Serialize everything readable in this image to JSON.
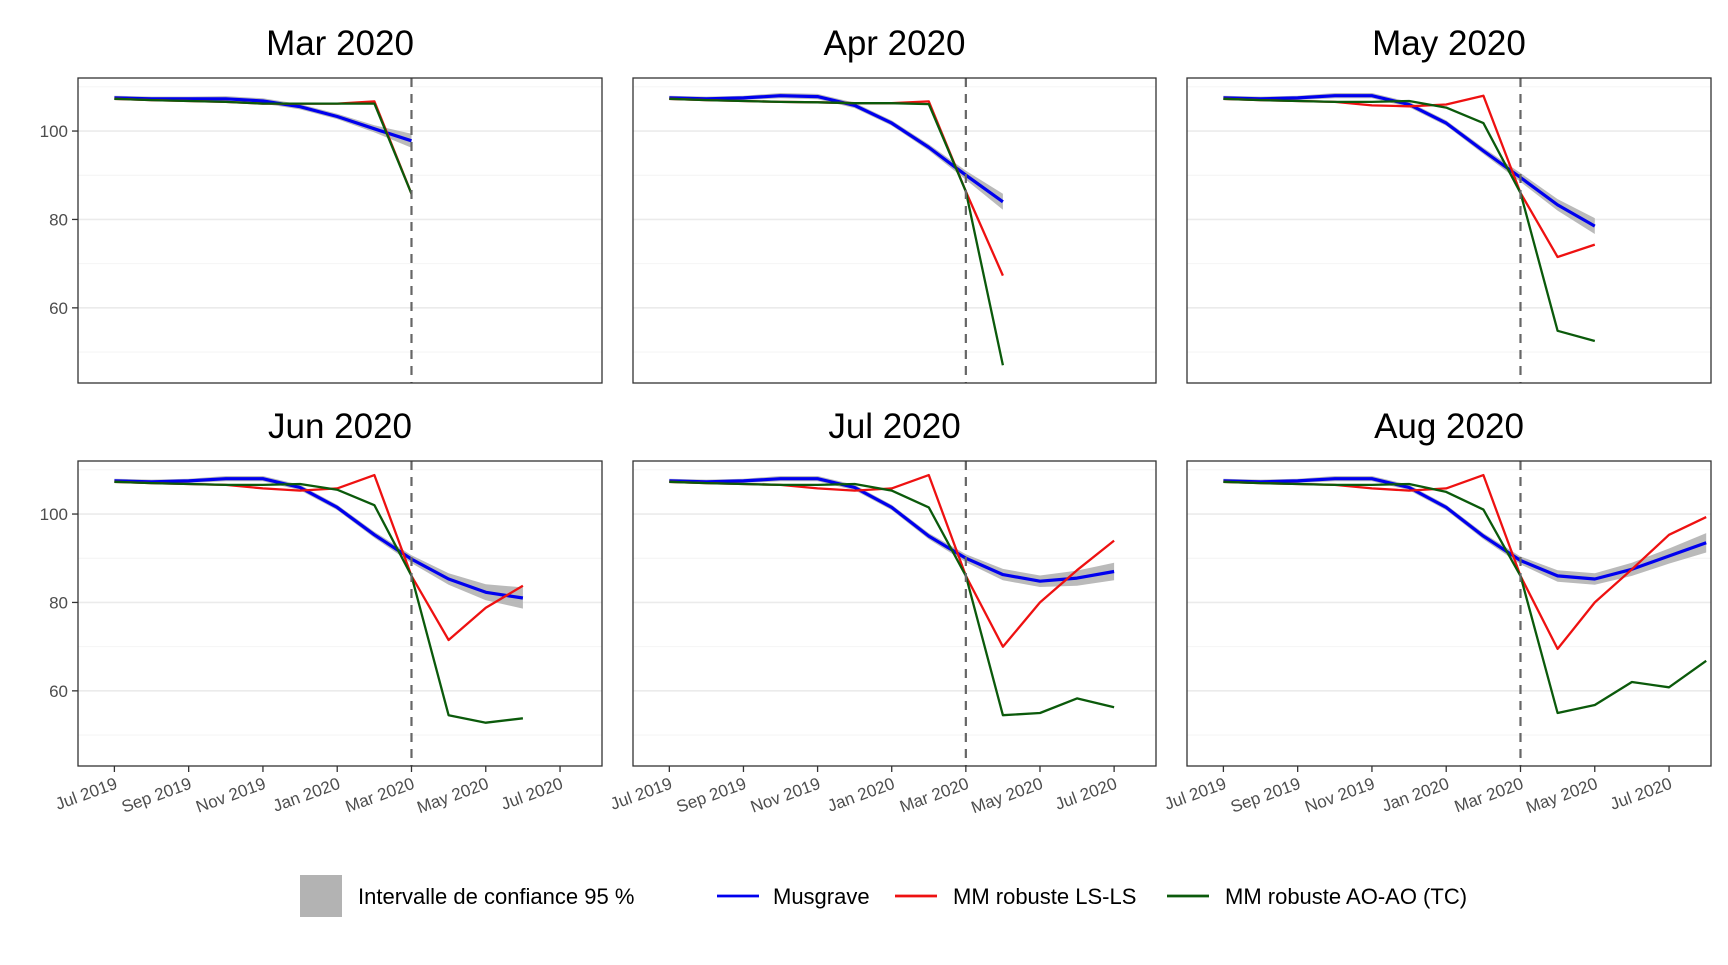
{
  "legend": {
    "items": [
      {
        "key": "ci",
        "label": "Intervalle de confiance 95 %",
        "type": "band",
        "color": "#b3b3b3"
      },
      {
        "key": "musgrave",
        "label": "Musgrave",
        "type": "line",
        "color": "#0000ee"
      },
      {
        "key": "ls",
        "label": "MM robuste LS-LS",
        "type": "line",
        "color": "#ee1111"
      },
      {
        "key": "ao",
        "label": "MM robuste AO-AO (TC)",
        "type": "line",
        "color": "#0b5a0b"
      }
    ]
  },
  "chart_data": {
    "type": "line",
    "layout": "facets 3x2",
    "x_tick_labels": [
      "Jul 2019",
      "Sep 2019",
      "Nov 2019",
      "Jan 2020",
      "Mar 2020",
      "May 2020",
      "Jul 2020"
    ],
    "y_tick_labels": [
      "60",
      "80",
      "100"
    ],
    "ylim": [
      43,
      112
    ],
    "vline_label": "Mar 2020",
    "colors": {
      "ci": "#b3b3b3",
      "musgrave": "#0000ee",
      "ls": "#ee1111",
      "ao": "#0b5a0b"
    },
    "panels": [
      {
        "title": "Mar 2020",
        "x": [
          "Jul 2019",
          "Aug 2019",
          "Sep 2019",
          "Oct 2019",
          "Nov 2019",
          "Dec 2019",
          "Jan 2020",
          "Feb 2020",
          "Mar 2020"
        ],
        "musgrave": [
          107.5,
          107.3,
          107.3,
          107.3,
          106.8,
          105.5,
          103.3,
          100.5,
          97.8
        ],
        "ci_lower": [
          107.0,
          106.8,
          106.8,
          106.7,
          106.2,
          104.9,
          102.7,
          99.7,
          96.2
        ],
        "ci_upper": [
          108.0,
          107.8,
          107.8,
          107.9,
          107.4,
          106.1,
          103.9,
          101.3,
          99.4
        ],
        "ls": [
          107.3,
          107.0,
          106.8,
          106.6,
          106.2,
          106.2,
          106.2,
          106.7,
          85.8
        ],
        "ao": [
          107.3,
          107.0,
          106.8,
          106.6,
          106.2,
          106.2,
          106.2,
          106.2,
          85.8
        ]
      },
      {
        "title": "Apr 2020",
        "x": [
          "Jul 2019",
          "Aug 2019",
          "Sep 2019",
          "Oct 2019",
          "Nov 2019",
          "Dec 2019",
          "Jan 2020",
          "Feb 2020",
          "Mar 2020",
          "Apr 2020"
        ],
        "musgrave": [
          107.5,
          107.3,
          107.5,
          108.0,
          107.8,
          105.8,
          101.8,
          96.3,
          90.0,
          84.0
        ],
        "ci_lower": [
          107.0,
          106.8,
          107.0,
          107.4,
          107.2,
          105.2,
          101.2,
          95.6,
          89.0,
          82.2
        ],
        "ci_upper": [
          108.0,
          107.8,
          108.0,
          108.6,
          108.4,
          106.4,
          102.4,
          97.0,
          91.0,
          85.8
        ],
        "ls": [
          107.3,
          107.0,
          106.8,
          106.6,
          106.5,
          106.3,
          106.3,
          106.7,
          86.3,
          67.3
        ],
        "ao": [
          107.3,
          107.0,
          106.8,
          106.6,
          106.5,
          106.3,
          106.3,
          106.1,
          86.3,
          47.0
        ]
      },
      {
        "title": "May 2020",
        "x": [
          "Jul 2019",
          "Aug 2019",
          "Sep 2019",
          "Oct 2019",
          "Nov 2019",
          "Dec 2019",
          "Jan 2020",
          "Feb 2020",
          "Mar 2020",
          "Apr 2020",
          "May 2020"
        ],
        "musgrave": [
          107.5,
          107.3,
          107.5,
          108.0,
          108.0,
          106.0,
          101.8,
          95.5,
          89.5,
          83.3,
          78.5
        ],
        "ci_lower": [
          107.0,
          106.8,
          107.0,
          107.4,
          107.4,
          105.4,
          101.2,
          94.8,
          88.5,
          82.0,
          76.7
        ],
        "ci_upper": [
          108.0,
          107.8,
          108.0,
          108.6,
          108.6,
          106.6,
          102.4,
          96.2,
          90.5,
          84.6,
          80.3
        ],
        "ls": [
          107.3,
          107.0,
          106.8,
          106.6,
          105.8,
          105.6,
          106.0,
          108.0,
          86.0,
          71.5,
          74.3
        ],
        "ao": [
          107.3,
          107.0,
          106.8,
          106.6,
          106.6,
          106.8,
          105.3,
          101.8,
          86.0,
          54.8,
          52.5
        ]
      },
      {
        "title": "Jun 2020",
        "x": [
          "Jul 2019",
          "Aug 2019",
          "Sep 2019",
          "Oct 2019",
          "Nov 2019",
          "Dec 2019",
          "Jan 2020",
          "Feb 2020",
          "Mar 2020",
          "Apr 2020",
          "May 2020",
          "Jun 2020"
        ],
        "musgrave": [
          107.5,
          107.3,
          107.5,
          108.0,
          108.0,
          106.0,
          101.5,
          95.3,
          89.8,
          85.3,
          82.3,
          81.0
        ],
        "ci_lower": [
          107.0,
          106.8,
          107.0,
          107.4,
          107.4,
          105.4,
          100.9,
          94.6,
          88.9,
          84.0,
          80.5,
          78.6
        ],
        "ci_upper": [
          108.0,
          107.8,
          108.0,
          108.6,
          108.6,
          106.6,
          102.1,
          96.0,
          90.7,
          86.6,
          84.1,
          83.4
        ],
        "ls": [
          107.3,
          107.0,
          106.8,
          106.6,
          105.8,
          105.3,
          105.8,
          108.8,
          86.0,
          71.5,
          78.8,
          83.8
        ],
        "ao": [
          107.3,
          107.0,
          106.8,
          106.6,
          106.6,
          106.8,
          105.5,
          102.0,
          86.0,
          54.5,
          52.8,
          53.8
        ]
      },
      {
        "title": "Jul 2020",
        "x": [
          "Jul 2019",
          "Aug 2019",
          "Sep 2019",
          "Oct 2019",
          "Nov 2019",
          "Dec 2019",
          "Jan 2020",
          "Feb 2020",
          "Mar 2020",
          "Apr 2020",
          "May 2020",
          "Jun 2020",
          "Jul 2020"
        ],
        "musgrave": [
          107.5,
          107.3,
          107.5,
          108.0,
          108.0,
          106.0,
          101.5,
          95.0,
          90.0,
          86.3,
          84.8,
          85.5,
          87.0
        ],
        "ci_lower": [
          107.0,
          106.8,
          107.0,
          107.4,
          107.4,
          105.4,
          100.9,
          94.3,
          89.1,
          85.0,
          83.5,
          83.8,
          85.0
        ],
        "ci_upper": [
          108.0,
          107.8,
          108.0,
          108.6,
          108.6,
          106.6,
          102.1,
          95.7,
          90.9,
          87.6,
          86.1,
          87.2,
          89.0
        ],
        "ls": [
          107.3,
          107.0,
          106.8,
          106.6,
          105.8,
          105.3,
          105.8,
          108.8,
          86.0,
          70.0,
          80.0,
          87.3,
          94.0
        ],
        "ao": [
          107.3,
          107.0,
          106.8,
          106.6,
          106.6,
          106.8,
          105.3,
          101.5,
          86.0,
          54.5,
          55.0,
          58.3,
          56.3
        ]
      },
      {
        "title": "Aug 2020",
        "x": [
          "Jul 2019",
          "Aug 2019",
          "Sep 2019",
          "Oct 2019",
          "Nov 2019",
          "Dec 2019",
          "Jan 2020",
          "Feb 2020",
          "Mar 2020",
          "Apr 2020",
          "May 2020",
          "Jun 2020",
          "Jul 2020",
          "Aug 2020"
        ],
        "musgrave": [
          107.5,
          107.3,
          107.5,
          108.0,
          108.0,
          106.0,
          101.5,
          95.0,
          89.5,
          86.0,
          85.3,
          87.5,
          90.5,
          93.5
        ],
        "ci_lower": [
          107.0,
          106.8,
          107.0,
          107.4,
          107.4,
          105.4,
          100.9,
          94.3,
          88.6,
          84.7,
          84.0,
          86.0,
          88.8,
          91.3
        ],
        "ci_upper": [
          108.0,
          107.8,
          108.0,
          108.6,
          108.6,
          106.6,
          102.1,
          95.7,
          90.4,
          87.3,
          86.6,
          89.0,
          92.2,
          95.7
        ],
        "ls": [
          107.3,
          107.0,
          106.8,
          106.6,
          105.8,
          105.3,
          105.8,
          108.8,
          86.0,
          69.5,
          80.0,
          87.5,
          95.3,
          99.3
        ],
        "ao": [
          107.3,
          107.0,
          106.8,
          106.6,
          106.6,
          106.8,
          105.0,
          101.0,
          86.0,
          55.0,
          56.8,
          62.0,
          60.8,
          66.8
        ]
      }
    ]
  }
}
